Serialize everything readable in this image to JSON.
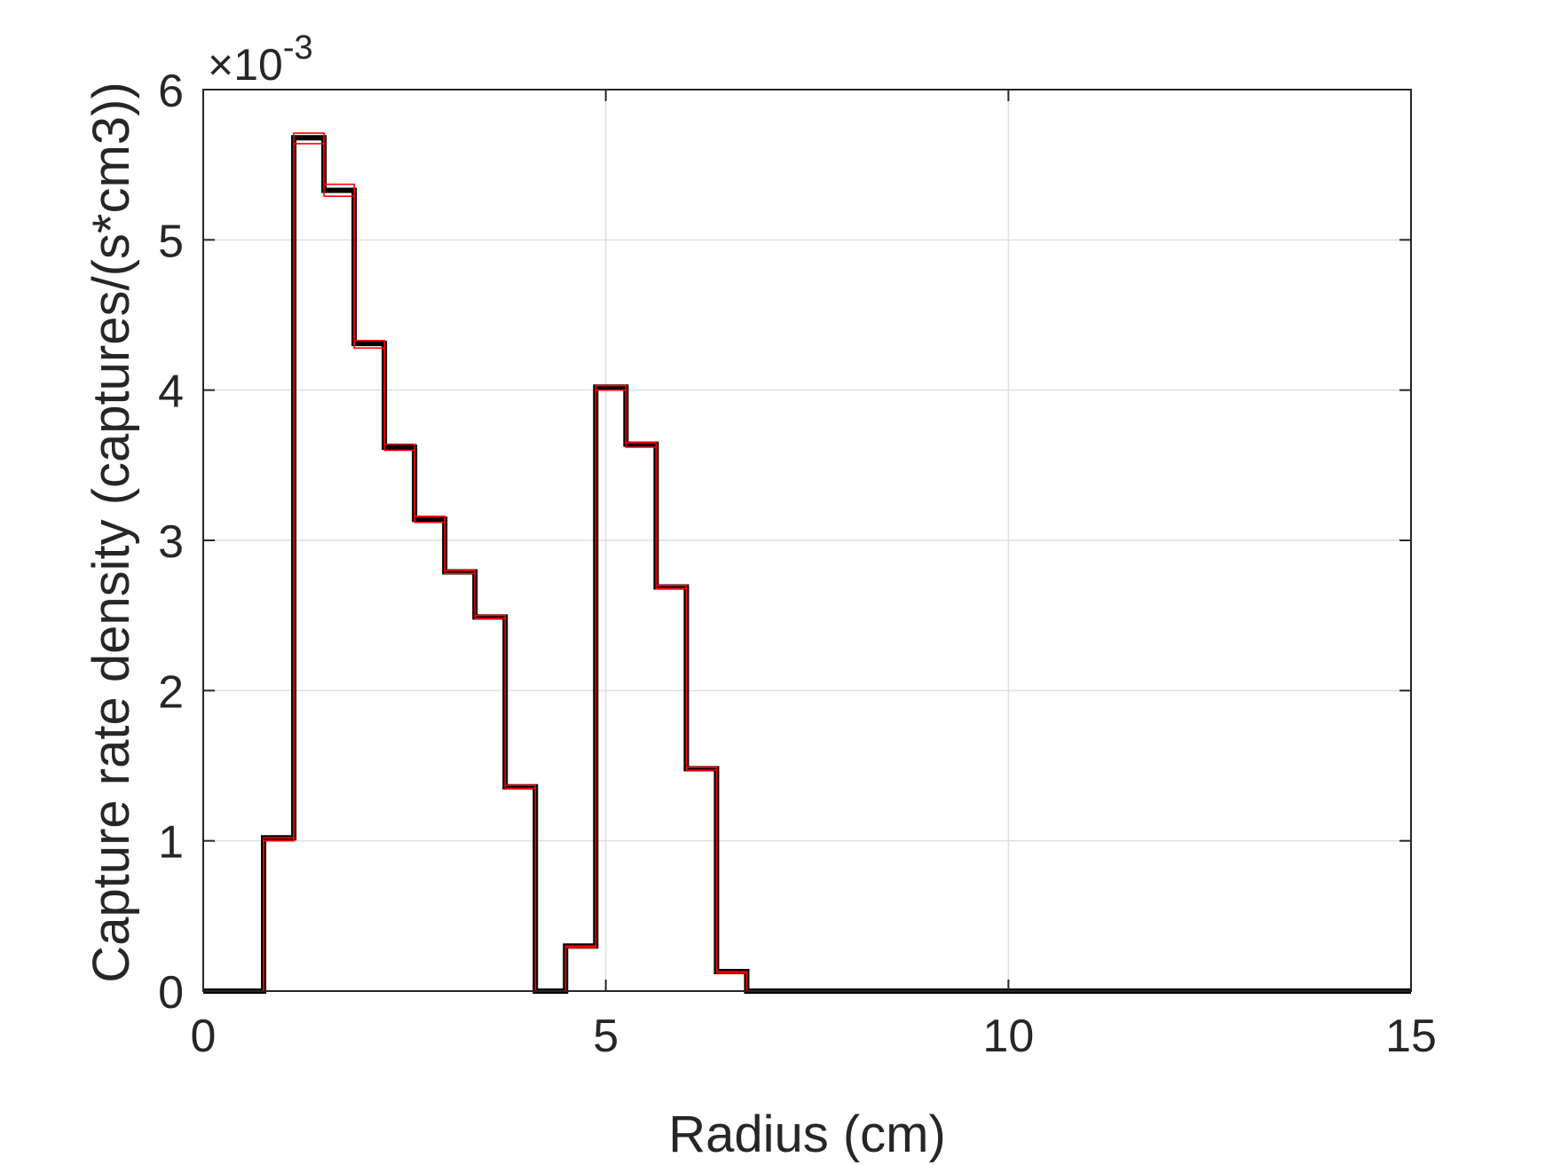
{
  "chart_data": {
    "type": "line",
    "step": true,
    "title": "",
    "xlabel": "Radius (cm)",
    "ylabel": "Capture rate density (captures/(s*cm3))",
    "y_exponent_label": {
      "base": "×10",
      "exponent": "-3"
    },
    "xlim": [
      0,
      15
    ],
    "ylim": [
      0,
      6
    ],
    "xticks": [
      0,
      5,
      10,
      15
    ],
    "yticks": [
      0,
      1,
      2,
      3,
      4,
      5,
      6
    ],
    "xtick_labels": [
      "0",
      "5",
      "10",
      "15"
    ],
    "ytick_labels": [
      "0",
      "1",
      "2",
      "3",
      "4",
      "5",
      "6"
    ],
    "grid": true,
    "bin_edges": [
      0,
      0.375,
      0.75,
      1.125,
      1.5,
      1.875,
      2.25,
      2.625,
      3.0,
      3.375,
      3.75,
      4.125,
      4.5,
      4.875,
      5.25,
      5.625,
      6.0,
      6.375,
      6.75,
      7.125,
      15
    ],
    "series": [
      {
        "color": "#000000",
        "values": [
          0,
          0,
          1.02,
          5.68,
          5.33,
          4.31,
          3.62,
          3.14,
          2.79,
          2.49,
          1.36,
          0,
          0.3,
          4.02,
          3.64,
          2.69,
          1.48,
          0.13,
          0,
          0
        ]
      },
      {
        "color": "#ff0000",
        "values": [
          0,
          0,
          1.02,
          5.71,
          5.37,
          4.33,
          3.64,
          3.16,
          2.8,
          2.5,
          1.37,
          0,
          0.3,
          4.03,
          3.65,
          2.7,
          1.49,
          0.13,
          0,
          0
        ]
      },
      {
        "color": "#ff0000",
        "values": [
          0,
          0,
          1.0,
          5.64,
          5.29,
          4.28,
          3.6,
          3.12,
          2.78,
          2.48,
          1.35,
          0,
          0.29,
          4.0,
          3.62,
          2.68,
          1.47,
          0.12,
          0,
          0
        ]
      }
    ]
  }
}
